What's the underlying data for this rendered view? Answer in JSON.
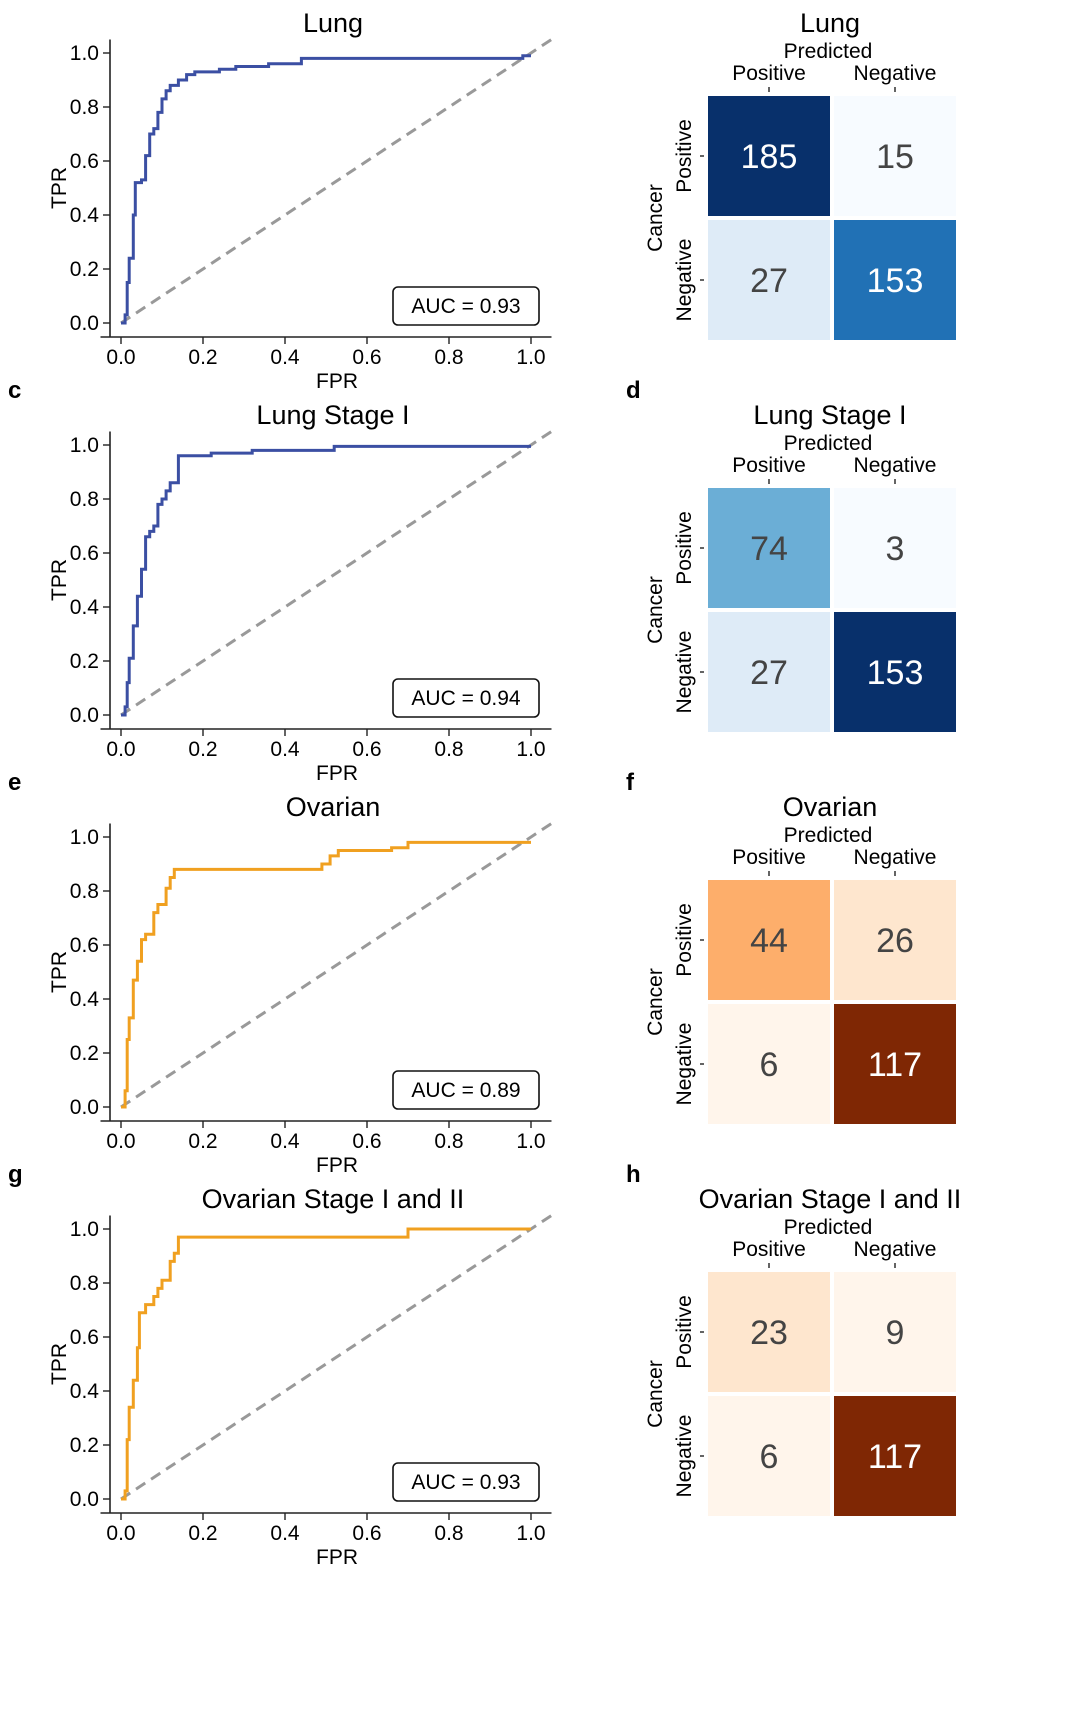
{
  "roc_axes": {
    "xlabel": "FPR",
    "ylabel": "TPR",
    "ticks": [
      "0.0",
      "0.2",
      "0.4",
      "0.6",
      "0.8",
      "1.0"
    ]
  },
  "cm_axes": {
    "predicted_label": "Predicted",
    "actual_label": "Cancer",
    "classes": [
      "Positive",
      "Negative"
    ]
  },
  "colors": {
    "lung_roc": "#3b4fa3",
    "ovarian_roc": "#f0a020",
    "diagonal": "#999999",
    "blues": [
      "#f7fbff",
      "#deebf7",
      "#c6dbef",
      "#9ecae1",
      "#6baed6",
      "#4292c6",
      "#2171b5",
      "#08519c",
      "#08306b"
    ],
    "oranges": [
      "#fff5eb",
      "#fee6ce",
      "#fdd0a2",
      "#fdae6b",
      "#fd8d3c",
      "#f16913",
      "#d94801",
      "#a63603",
      "#7f2704"
    ]
  },
  "chart_data": [
    {
      "type": "line",
      "title": "Lung",
      "panel_letter": "",
      "xlabel": "FPR",
      "ylabel": "TPR",
      "xlim": [
        0,
        1
      ],
      "ylim": [
        0,
        1
      ],
      "grid": false,
      "series": [
        {
          "color_key": "lung_roc",
          "points": [
            [
              0,
              0
            ],
            [
              0.01,
              0
            ],
            [
              0.01,
              0.03
            ],
            [
              0.015,
              0.03
            ],
            [
              0.015,
              0.15
            ],
            [
              0.02,
              0.15
            ],
            [
              0.02,
              0.24
            ],
            [
              0.03,
              0.24
            ],
            [
              0.03,
              0.4
            ],
            [
              0.035,
              0.4
            ],
            [
              0.035,
              0.52
            ],
            [
              0.05,
              0.52
            ],
            [
              0.05,
              0.53
            ],
            [
              0.06,
              0.53
            ],
            [
              0.06,
              0.62
            ],
            [
              0.07,
              0.62
            ],
            [
              0.07,
              0.7
            ],
            [
              0.08,
              0.7
            ],
            [
              0.08,
              0.72
            ],
            [
              0.09,
              0.72
            ],
            [
              0.09,
              0.78
            ],
            [
              0.1,
              0.78
            ],
            [
              0.1,
              0.83
            ],
            [
              0.11,
              0.83
            ],
            [
              0.11,
              0.86
            ],
            [
              0.12,
              0.86
            ],
            [
              0.12,
              0.88
            ],
            [
              0.14,
              0.88
            ],
            [
              0.14,
              0.9
            ],
            [
              0.16,
              0.9
            ],
            [
              0.16,
              0.92
            ],
            [
              0.18,
              0.92
            ],
            [
              0.18,
              0.93
            ],
            [
              0.24,
              0.93
            ],
            [
              0.24,
              0.94
            ],
            [
              0.28,
              0.94
            ],
            [
              0.28,
              0.95
            ],
            [
              0.36,
              0.95
            ],
            [
              0.36,
              0.96
            ],
            [
              0.44,
              0.96
            ],
            [
              0.44,
              0.98
            ],
            [
              0.98,
              0.98
            ],
            [
              0.98,
              0.99
            ],
            [
              1.0,
              0.99
            ]
          ]
        }
      ],
      "annotation": "AUC = 0.93"
    },
    {
      "type": "heatmap",
      "title": "Lung",
      "panel_letter": "",
      "palette": "blues",
      "values": [
        [
          185,
          15
        ],
        [
          27,
          153
        ]
      ]
    },
    {
      "type": "line",
      "title": "Lung Stage I",
      "panel_letter": "c",
      "xlabel": "FPR",
      "ylabel": "TPR",
      "xlim": [
        0,
        1
      ],
      "ylim": [
        0,
        1
      ],
      "grid": false,
      "series": [
        {
          "color_key": "lung_roc",
          "points": [
            [
              0,
              0
            ],
            [
              0.01,
              0
            ],
            [
              0.01,
              0.03
            ],
            [
              0.015,
              0.03
            ],
            [
              0.015,
              0.12
            ],
            [
              0.02,
              0.12
            ],
            [
              0.02,
              0.21
            ],
            [
              0.03,
              0.21
            ],
            [
              0.03,
              0.33
            ],
            [
              0.04,
              0.33
            ],
            [
              0.04,
              0.44
            ],
            [
              0.05,
              0.44
            ],
            [
              0.05,
              0.54
            ],
            [
              0.06,
              0.54
            ],
            [
              0.06,
              0.66
            ],
            [
              0.07,
              0.66
            ],
            [
              0.07,
              0.68
            ],
            [
              0.08,
              0.68
            ],
            [
              0.08,
              0.7
            ],
            [
              0.09,
              0.7
            ],
            [
              0.09,
              0.78
            ],
            [
              0.1,
              0.78
            ],
            [
              0.1,
              0.8
            ],
            [
              0.11,
              0.8
            ],
            [
              0.11,
              0.83
            ],
            [
              0.12,
              0.83
            ],
            [
              0.12,
              0.86
            ],
            [
              0.14,
              0.86
            ],
            [
              0.14,
              0.96
            ],
            [
              0.22,
              0.96
            ],
            [
              0.22,
              0.97
            ],
            [
              0.32,
              0.97
            ],
            [
              0.32,
              0.98
            ],
            [
              0.52,
              0.98
            ],
            [
              0.52,
              0.995
            ],
            [
              1.0,
              0.995
            ]
          ]
        }
      ],
      "annotation": "AUC = 0.94"
    },
    {
      "type": "heatmap",
      "title": "Lung Stage I",
      "panel_letter": "d",
      "palette": "blues",
      "values": [
        [
          74,
          3
        ],
        [
          27,
          153
        ]
      ]
    },
    {
      "type": "line",
      "title": "Ovarian",
      "panel_letter": "e",
      "xlabel": "FPR",
      "ylabel": "TPR",
      "xlim": [
        0,
        1
      ],
      "ylim": [
        0,
        1
      ],
      "grid": false,
      "series": [
        {
          "color_key": "ovarian_roc",
          "points": [
            [
              0,
              0
            ],
            [
              0.01,
              0
            ],
            [
              0.01,
              0.06
            ],
            [
              0.015,
              0.06
            ],
            [
              0.015,
              0.25
            ],
            [
              0.02,
              0.25
            ],
            [
              0.02,
              0.33
            ],
            [
              0.03,
              0.33
            ],
            [
              0.03,
              0.47
            ],
            [
              0.04,
              0.47
            ],
            [
              0.04,
              0.54
            ],
            [
              0.05,
              0.54
            ],
            [
              0.05,
              0.62
            ],
            [
              0.06,
              0.62
            ],
            [
              0.06,
              0.64
            ],
            [
              0.08,
              0.64
            ],
            [
              0.08,
              0.72
            ],
            [
              0.09,
              0.72
            ],
            [
              0.09,
              0.75
            ],
            [
              0.11,
              0.75
            ],
            [
              0.11,
              0.81
            ],
            [
              0.12,
              0.81
            ],
            [
              0.12,
              0.85
            ],
            [
              0.13,
              0.85
            ],
            [
              0.13,
              0.88
            ],
            [
              0.49,
              0.88
            ],
            [
              0.49,
              0.9
            ],
            [
              0.51,
              0.9
            ],
            [
              0.51,
              0.93
            ],
            [
              0.53,
              0.93
            ],
            [
              0.53,
              0.95
            ],
            [
              0.66,
              0.95
            ],
            [
              0.66,
              0.96
            ],
            [
              0.7,
              0.96
            ],
            [
              0.7,
              0.98
            ],
            [
              1.0,
              0.98
            ]
          ]
        }
      ],
      "annotation": "AUC = 0.89"
    },
    {
      "type": "heatmap",
      "title": "Ovarian",
      "panel_letter": "f",
      "palette": "oranges",
      "values": [
        [
          44,
          26
        ],
        [
          6,
          117
        ]
      ]
    },
    {
      "type": "line",
      "title": "Ovarian Stage I and II",
      "panel_letter": "g",
      "xlabel": "FPR",
      "ylabel": "TPR",
      "xlim": [
        0,
        1
      ],
      "ylim": [
        0,
        1
      ],
      "grid": false,
      "series": [
        {
          "color_key": "ovarian_roc",
          "points": [
            [
              0,
              0
            ],
            [
              0.01,
              0
            ],
            [
              0.01,
              0.03
            ],
            [
              0.015,
              0.03
            ],
            [
              0.015,
              0.22
            ],
            [
              0.02,
              0.22
            ],
            [
              0.02,
              0.34
            ],
            [
              0.03,
              0.34
            ],
            [
              0.03,
              0.44
            ],
            [
              0.04,
              0.44
            ],
            [
              0.04,
              0.56
            ],
            [
              0.045,
              0.56
            ],
            [
              0.045,
              0.69
            ],
            [
              0.06,
              0.69
            ],
            [
              0.06,
              0.72
            ],
            [
              0.08,
              0.72
            ],
            [
              0.08,
              0.75
            ],
            [
              0.09,
              0.75
            ],
            [
              0.09,
              0.78
            ],
            [
              0.1,
              0.78
            ],
            [
              0.1,
              0.81
            ],
            [
              0.12,
              0.81
            ],
            [
              0.12,
              0.88
            ],
            [
              0.13,
              0.88
            ],
            [
              0.13,
              0.91
            ],
            [
              0.14,
              0.91
            ],
            [
              0.14,
              0.97
            ],
            [
              0.7,
              0.97
            ],
            [
              0.7,
              1.0
            ],
            [
              1.0,
              1.0
            ]
          ]
        }
      ],
      "annotation": "AUC = 0.93"
    },
    {
      "type": "heatmap",
      "title": "Ovarian Stage I and II",
      "panel_letter": "h",
      "palette": "oranges",
      "values": [
        [
          23,
          9
        ],
        [
          6,
          117
        ]
      ]
    }
  ]
}
